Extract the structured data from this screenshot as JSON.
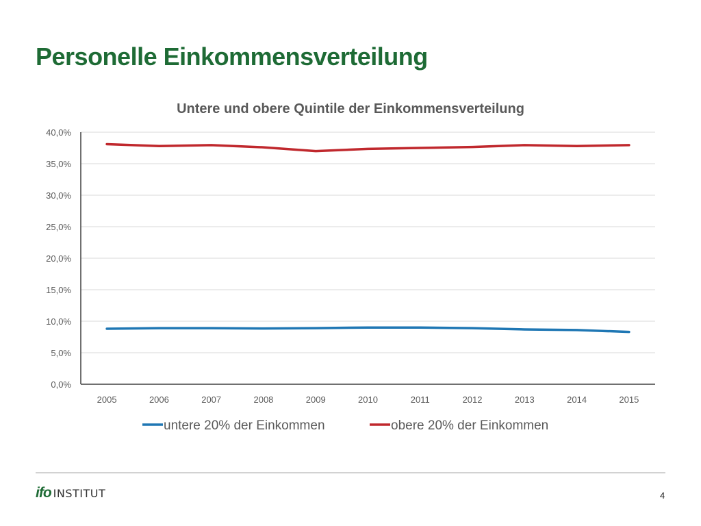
{
  "slide": {
    "title": "Personelle Einkommensverteilung",
    "page_number": "4"
  },
  "logo": {
    "mark": "ifo",
    "text": "INSTITUT",
    "color": "#1e6b35"
  },
  "chart_data": {
    "type": "line",
    "title": "Untere und obere Quintile der Einkommensverteilung",
    "xlabel": "",
    "ylabel": "",
    "categories": [
      "2005",
      "2006",
      "2007",
      "2008",
      "2009",
      "2010",
      "2011",
      "2012",
      "2013",
      "2014",
      "2015"
    ],
    "ylim": [
      0,
      40
    ],
    "yticks": [
      0,
      5,
      10,
      15,
      20,
      25,
      30,
      35,
      40
    ],
    "ytick_labels": [
      "0,0%",
      "5,0%",
      "10,0%",
      "15,0%",
      "20,0%",
      "25,0%",
      "30,0%",
      "35,0%",
      "40,0%"
    ],
    "grid": true,
    "legend_position": "bottom",
    "series": [
      {
        "name": "untere 20% der Einkommen",
        "color": "#1f77b4",
        "values": [
          8.8,
          8.9,
          8.9,
          8.85,
          8.9,
          9.0,
          9.0,
          8.9,
          8.7,
          8.6,
          8.3
        ]
      },
      {
        "name": "obere 20% der Einkommen",
        "color": "#c0282d",
        "values": [
          38.1,
          37.8,
          37.95,
          37.6,
          37.0,
          37.35,
          37.5,
          37.65,
          37.95,
          37.8,
          37.95
        ]
      }
    ]
  }
}
